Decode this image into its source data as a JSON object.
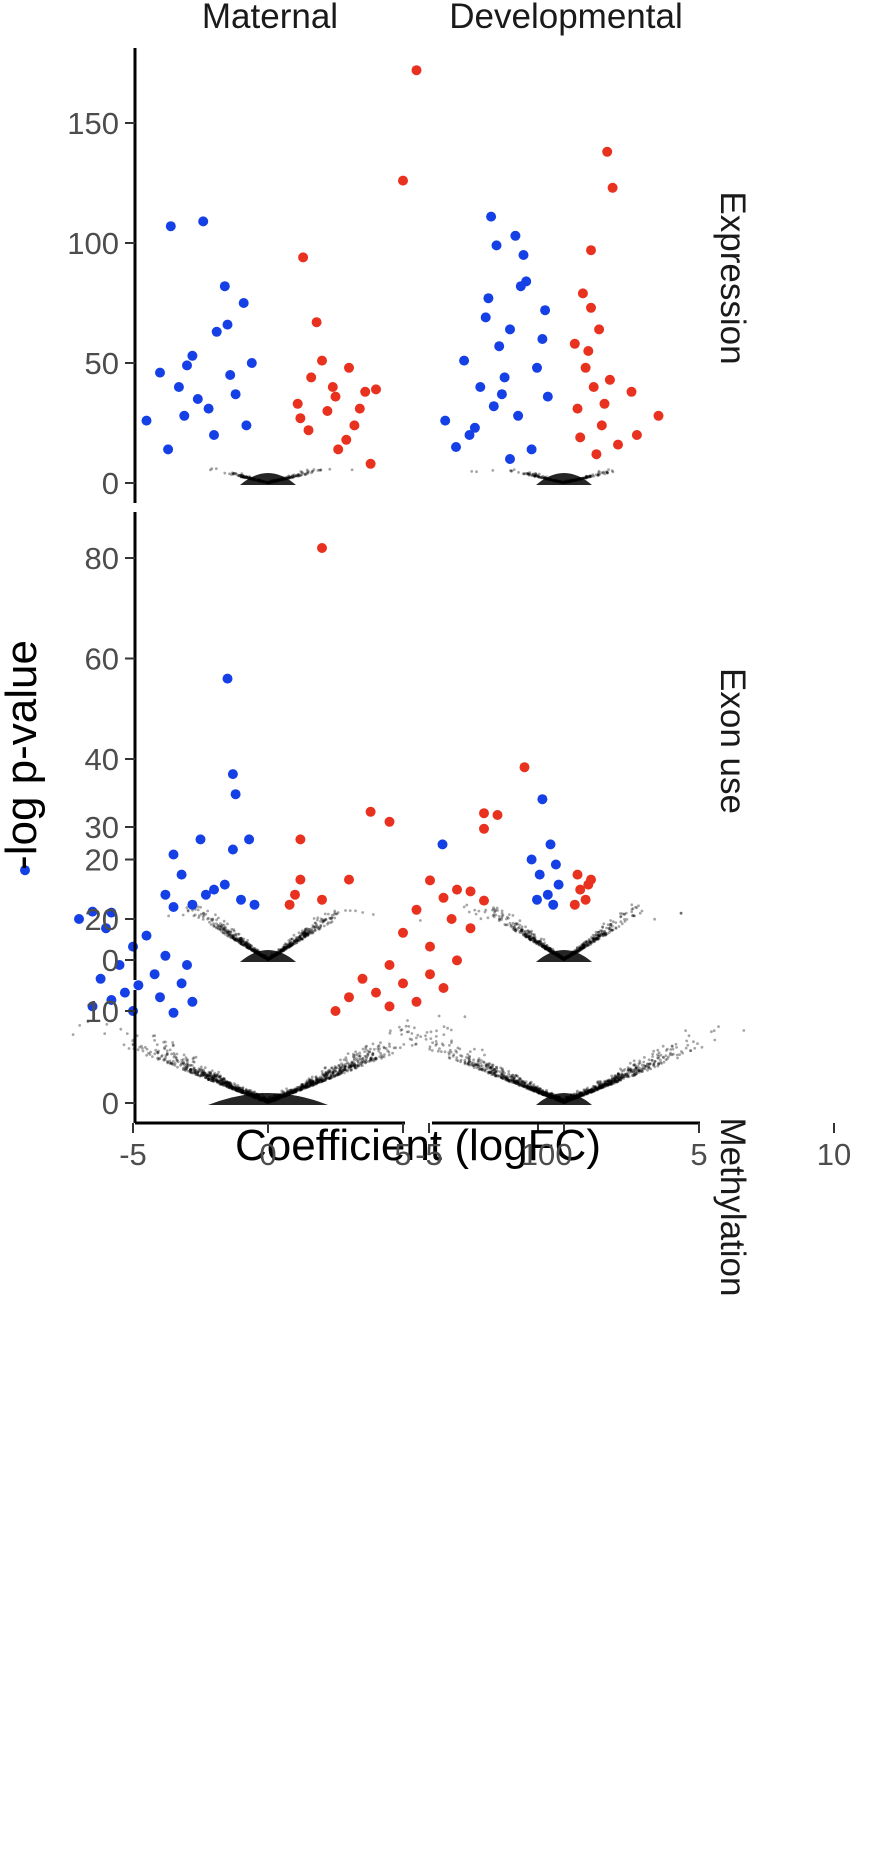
{
  "chart_data": {
    "type": "scatter",
    "title": "",
    "xlabel": "Coefficient (logFC)",
    "ylabel": "-log p-value",
    "columns": [
      "Maternal",
      "Developmental"
    ],
    "rows": [
      "Expression",
      "Exon use",
      "Methylation"
    ],
    "xlim": [
      -10,
      10
    ],
    "x_ticks": [
      -5,
      0,
      5,
      10
    ],
    "x_tick_labels": [
      "-5",
      "0",
      "5",
      "10"
    ],
    "grid": false,
    "legend": "none",
    "colors": {
      "up": "#e8321f",
      "down": "#1540e6",
      "background": "#000000"
    },
    "panels": [
      {
        "row": "Expression",
        "ylim": [
          0,
          175
        ],
        "y_ticks": [
          0,
          50,
          100,
          150
        ],
        "maternal": {
          "up": [
            [
              5.5,
              172
            ],
            [
              5,
              126
            ],
            [
              1.3,
              94
            ],
            [
              1.8,
              67
            ],
            [
              2,
              51
            ],
            [
              3,
              48
            ],
            [
              1.6,
              44
            ],
            [
              4,
              39
            ],
            [
              3.6,
              38
            ],
            [
              2.5,
              36
            ],
            [
              1.1,
              33
            ],
            [
              2.2,
              30
            ],
            [
              3.2,
              24
            ],
            [
              2.6,
              14
            ],
            [
              3.8,
              8
            ],
            [
              2.9,
              18
            ],
            [
              1.5,
              22
            ],
            [
              2.4,
              40
            ],
            [
              1.2,
              27
            ],
            [
              3.4,
              31
            ]
          ],
          "down": [
            [
              -3.6,
              107
            ],
            [
              -2.4,
              109
            ],
            [
              -1.6,
              82
            ],
            [
              -0.9,
              75
            ],
            [
              -1.5,
              66
            ],
            [
              -1.9,
              63
            ],
            [
              -2.8,
              53
            ],
            [
              -3,
              49
            ],
            [
              -0.6,
              50
            ],
            [
              -4,
              46
            ],
            [
              -3.3,
              40
            ],
            [
              -1.2,
              37
            ],
            [
              -2.2,
              31
            ],
            [
              -4.5,
              26
            ],
            [
              -3.7,
              14
            ],
            [
              -2,
              20
            ],
            [
              -1.4,
              45
            ],
            [
              -3.1,
              28
            ],
            [
              -0.8,
              24
            ],
            [
              -2.6,
              35
            ]
          ]
        },
        "developmental": {
          "up": [
            [
              1.6,
              138
            ],
            [
              1.8,
              123
            ],
            [
              1,
              97
            ],
            [
              0.7,
              79
            ],
            [
              1,
              73
            ],
            [
              1.3,
              64
            ],
            [
              0.9,
              55
            ],
            [
              1.7,
              43
            ],
            [
              2.5,
              38
            ],
            [
              1.5,
              33
            ],
            [
              0.5,
              31
            ],
            [
              0.6,
              19
            ],
            [
              1.2,
              12
            ],
            [
              0.8,
              48
            ],
            [
              1.4,
              24
            ],
            [
              3.5,
              28
            ],
            [
              2.7,
              20
            ],
            [
              0.4,
              58
            ],
            [
              1.1,
              40
            ],
            [
              2,
              16
            ]
          ],
          "down": [
            [
              -2.7,
              111
            ],
            [
              -1.8,
              103
            ],
            [
              -2.5,
              99
            ],
            [
              -1.5,
              95
            ],
            [
              -1.4,
              84
            ],
            [
              -1.6,
              82
            ],
            [
              -2.8,
              77
            ],
            [
              -2.9,
              69
            ],
            [
              -2,
              64
            ],
            [
              -2.4,
              57
            ],
            [
              -3.7,
              51
            ],
            [
              -2.2,
              44
            ],
            [
              -3.1,
              40
            ],
            [
              -2.6,
              32
            ],
            [
              -4.4,
              26
            ],
            [
              -3.5,
              20
            ],
            [
              -1.2,
              14
            ],
            [
              -2,
              10
            ],
            [
              -0.8,
              60
            ],
            [
              -1,
              48
            ],
            [
              -0.6,
              36
            ],
            [
              -1.7,
              28
            ],
            [
              -3.3,
              23
            ],
            [
              -0.7,
              72
            ],
            [
              -2.3,
              37
            ],
            [
              -4,
              15
            ]
          ]
        }
      },
      {
        "row": "Exon use",
        "ylim": [
          0,
          85
        ],
        "y_ticks": [
          0,
          20,
          40,
          60,
          80
        ],
        "maternal": {
          "up": [
            [
              2,
              82
            ],
            [
              3.8,
              29.5
            ],
            [
              4.5,
              27.5
            ],
            [
              1.2,
              24
            ],
            [
              3,
              16
            ],
            [
              1.2,
              16
            ],
            [
              1,
              13
            ],
            [
              2,
              12
            ],
            [
              0.8,
              11
            ]
          ],
          "down": [
            [
              -1.5,
              56
            ],
            [
              -1.3,
              37
            ],
            [
              -1.2,
              33
            ],
            [
              -0.7,
              24
            ],
            [
              -2.5,
              24
            ],
            [
              -1.3,
              22
            ],
            [
              -3.5,
              21
            ],
            [
              -3.2,
              17
            ],
            [
              -2,
              14
            ],
            [
              -3.8,
              13
            ],
            [
              -1,
              12
            ],
            [
              -2.8,
              11
            ],
            [
              -0.5,
              11
            ],
            [
              -2.3,
              13
            ],
            [
              -1.6,
              15
            ]
          ]
        },
        "developmental": {
          "up": [
            [
              1,
              16
            ],
            [
              0.6,
              14
            ],
            [
              0.8,
              12
            ],
            [
              0.4,
              11
            ],
            [
              0.9,
              15
            ],
            [
              0.5,
              17
            ]
          ],
          "down": [
            [
              -0.8,
              32
            ],
            [
              -4.5,
              23
            ],
            [
              -0.5,
              23
            ],
            [
              -1.2,
              20
            ],
            [
              -0.3,
              19
            ],
            [
              -0.9,
              17
            ],
            [
              -0.2,
              15
            ],
            [
              -0.6,
              13
            ],
            [
              -1,
              12
            ],
            [
              -0.4,
              11
            ]
          ]
        }
      },
      {
        "row": "Methylation",
        "ylim": [
          0,
          38
        ],
        "y_ticks": [
          0,
          10,
          20,
          30
        ],
        "maternal": {
          "up": [
            [
              9.5,
              36.5
            ],
            [
              8,
              31.5
            ],
            [
              8.5,
              31.3
            ],
            [
              8,
              29.8
            ],
            [
              6,
              24.2
            ],
            [
              7,
              23.2
            ],
            [
              7.5,
              23
            ],
            [
              6.5,
              22.3
            ],
            [
              8,
              22
            ],
            [
              5.5,
              21
            ],
            [
              6.8,
              20
            ],
            [
              7.5,
              19
            ],
            [
              5,
              18.5
            ],
            [
              6,
              17
            ],
            [
              4.5,
              15
            ],
            [
              6,
              14
            ],
            [
              5,
              13
            ],
            [
              4,
              12
            ],
            [
              3,
              11.5
            ],
            [
              5.5,
              11
            ],
            [
              4.5,
              10.5
            ],
            [
              2.5,
              10
            ],
            [
              6.5,
              12.5
            ],
            [
              3.5,
              13.5
            ],
            [
              7,
              15.5
            ]
          ],
          "down": [
            [
              -9,
              25.3
            ],
            [
              -6.5,
              20.8
            ],
            [
              -5.8,
              20.7
            ],
            [
              -7,
              20
            ],
            [
              -3.5,
              21.3
            ],
            [
              -6,
              19
            ],
            [
              -4.5,
              18.2
            ],
            [
              -5,
              17
            ],
            [
              -3.8,
              16
            ],
            [
              -5.5,
              15
            ],
            [
              -4.2,
              14
            ],
            [
              -6.2,
              13.5
            ],
            [
              -3.2,
              13
            ],
            [
              -5.3,
              12
            ],
            [
              -4,
              11.5
            ],
            [
              -2.8,
              11
            ],
            [
              -6.5,
              10.5
            ],
            [
              -5,
              10
            ],
            [
              -3.5,
              9.8
            ],
            [
              -4.8,
              12.8
            ],
            [
              -3,
              15
            ],
            [
              -5.8,
              11.2
            ]
          ]
        },
        "developmental": {
          "up": [],
          "down": []
        }
      }
    ]
  }
}
